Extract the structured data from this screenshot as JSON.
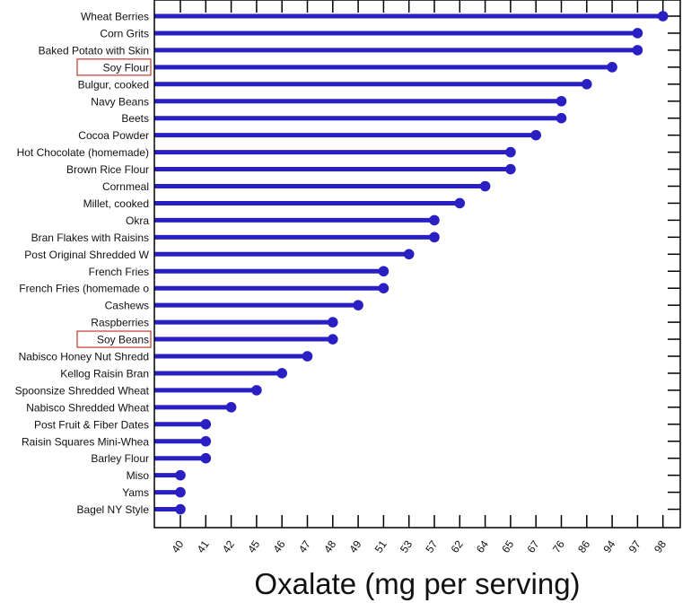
{
  "chart_data": {
    "type": "lollipop",
    "orientation": "horizontal",
    "xlabel": "Oxalate (mg per serving)",
    "x_ticks": [
      "40",
      "41",
      "42",
      "45",
      "46",
      "47",
      "48",
      "49",
      "51",
      "53",
      "57",
      "62",
      "64",
      "65",
      "67",
      "76",
      "86",
      "94",
      "97",
      "98"
    ],
    "categories": [
      "Wheat Berries",
      "Corn Grits",
      "Baked Potato with Skin",
      "Soy Flour",
      "Bulgur, cooked",
      "Navy Beans",
      "Beets",
      "Cocoa Powder",
      "Hot Chocolate (homemade)",
      "Brown Rice Flour",
      "Cornmeal",
      "Millet, cooked",
      "Okra",
      "Bran Flakes with Raisins",
      "Post Original Shredded W",
      "French Fries",
      "French Fries (homemade o",
      "Cashews",
      "Raspberries",
      "Soy Beans",
      "Nabisco Honey Nut Shredd",
      "Kellog Raisin Bran",
      "Spoonsize Shredded Wheat",
      "Nabisco Shredded Wheat",
      "Post Fruit & Fiber Dates",
      "Raisin Squares Mini-Whea",
      "Barley Flour",
      "Miso",
      "Yams",
      "Bagel NY Style"
    ],
    "values": [
      98,
      97,
      97,
      94,
      86,
      76,
      76,
      67,
      65,
      65,
      64,
      62,
      57,
      57,
      53,
      51,
      51,
      49,
      48,
      48,
      47,
      46,
      45,
      42,
      41,
      41,
      41,
      40,
      40,
      40
    ],
    "highlighted": [
      "Soy Flour",
      "Soy Beans"
    ],
    "colors": {
      "series": "#2a1fc2",
      "highlight_box": "#c0392b",
      "axis": "#000000"
    },
    "grid": false
  }
}
